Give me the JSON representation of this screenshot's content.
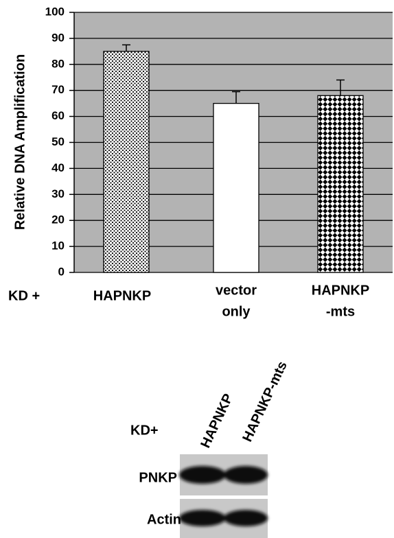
{
  "chart_data": {
    "type": "bar",
    "ylabel": "Relative DNA Amplification",
    "xlabel": "KD +",
    "categories": [
      [
        "HAPNKP"
      ],
      [
        "vector",
        "only"
      ],
      [
        "HAPNKP",
        "-mts"
      ]
    ],
    "values": [
      85,
      65,
      68
    ],
    "errors": [
      2.5,
      4.5,
      6
    ],
    "ylim": [
      0,
      100
    ],
    "yticks": [
      0,
      10,
      20,
      30,
      40,
      50,
      60,
      70,
      80,
      90,
      100
    ],
    "grid": true,
    "background": "#b3b3b3"
  },
  "blot": {
    "treatment_label": "KD+",
    "lanes": [
      "HAPNKP",
      "HAPNKP-mts"
    ],
    "rows": [
      "PNKP",
      "Actin"
    ]
  }
}
